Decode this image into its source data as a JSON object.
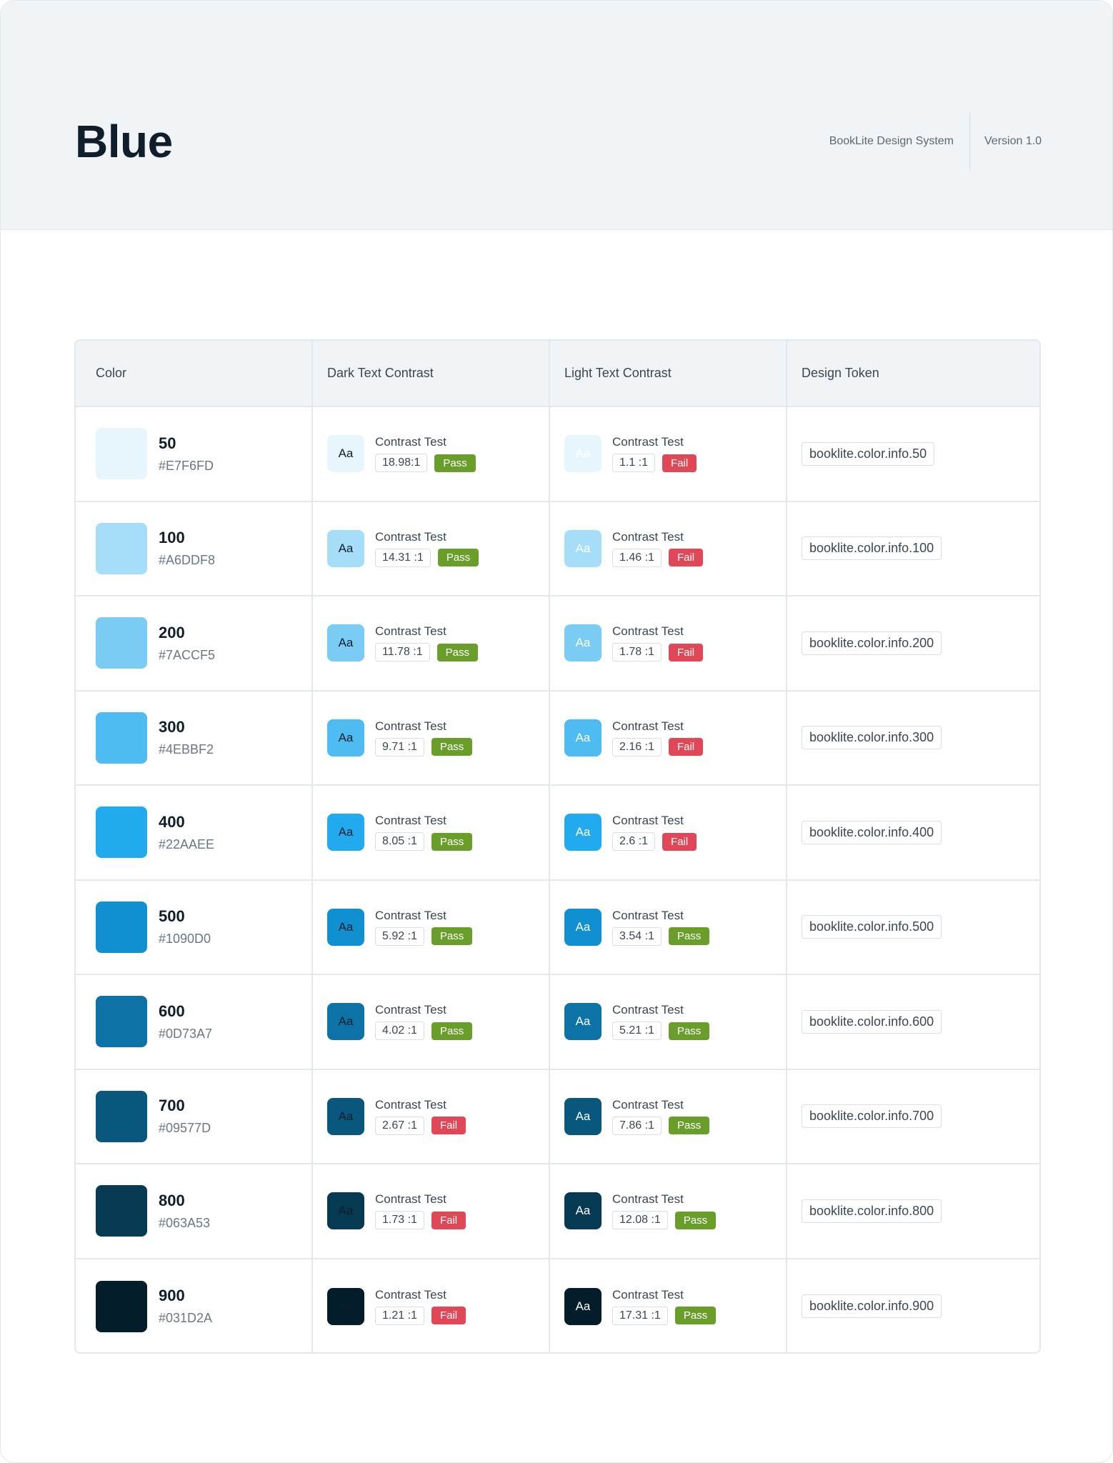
{
  "header": {
    "title": "Blue",
    "system_name": "BookLite Design System",
    "version": "Version 1.0"
  },
  "table": {
    "columns": [
      "Color",
      "Dark Text Contrast",
      "Light Text Contrast",
      "Design Token"
    ],
    "aa_label": "Aa",
    "contrast_label": "Contrast Test",
    "colors": {
      "dark_text": "#0f1e2a",
      "light_text": "#ffffff",
      "pass": "#6a9e2b",
      "fail": "#e04857"
    },
    "rows": [
      {
        "shade": "50",
        "hex": "#E7F6FD",
        "swatch_color": "#E7F6FD",
        "dark_ratio": "18.98:1",
        "dark_result": "Pass",
        "light_ratio": "1.1 :1",
        "light_result": "Fail",
        "token": "booklite.color.info.50"
      },
      {
        "shade": "100",
        "hex": "#A6DDF8",
        "swatch_color": "#A6DDF8",
        "dark_ratio": "14.31 :1",
        "dark_result": "Pass",
        "light_ratio": "1.46 :1",
        "light_result": "Fail",
        "token": "booklite.color.info.100"
      },
      {
        "shade": "200",
        "hex": "#7ACCF5",
        "swatch_color": "#7ACCF5",
        "dark_ratio": "11.78 :1",
        "dark_result": "Pass",
        "light_ratio": "1.78 :1",
        "light_result": "Fail",
        "token": "booklite.color.info.200"
      },
      {
        "shade": "300",
        "hex": "#4EBBF2",
        "swatch_color": "#4EBBF2",
        "dark_ratio": "9.71 :1",
        "dark_result": "Pass",
        "light_ratio": "2.16 :1",
        "light_result": "Fail",
        "token": "booklite.color.info.300"
      },
      {
        "shade": "400",
        "hex": "#22AAEE",
        "swatch_color": "#22AAEE",
        "dark_ratio": "8.05 :1",
        "dark_result": "Pass",
        "light_ratio": "2.6 :1",
        "light_result": "Fail",
        "token": "booklite.color.info.400"
      },
      {
        "shade": "500",
        "hex": "#1090D0",
        "swatch_color": "#1090D0",
        "dark_ratio": "5.92 :1",
        "dark_result": "Pass",
        "light_ratio": "3.54 :1",
        "light_result": "Pass",
        "token": "booklite.color.info.500"
      },
      {
        "shade": "600",
        "hex": "#0D73A7",
        "swatch_color": "#0D73A7",
        "dark_ratio": "4.02 :1",
        "dark_result": "Pass",
        "light_ratio": "5.21 :1",
        "light_result": "Pass",
        "token": "booklite.color.info.600"
      },
      {
        "shade": "700",
        "hex": "#09577D",
        "swatch_color": "#09577D",
        "dark_ratio": "2.67 :1",
        "dark_result": "Fail",
        "light_ratio": "7.86 :1",
        "light_result": "Pass",
        "token": "booklite.color.info.700"
      },
      {
        "shade": "800",
        "hex": "#063A53",
        "swatch_color": "#063A53",
        "dark_ratio": "1.73 :1",
        "dark_result": "Fail",
        "light_ratio": "12.08 :1",
        "light_result": "Pass",
        "token": "booklite.color.info.800"
      },
      {
        "shade": "900",
        "hex": "#031D2A",
        "swatch_color": "#031D2A",
        "dark_ratio": "1.21 :1",
        "dark_result": "Fail",
        "light_ratio": "17.31 :1",
        "light_result": "Pass",
        "token": "booklite.color.info.900"
      }
    ]
  }
}
